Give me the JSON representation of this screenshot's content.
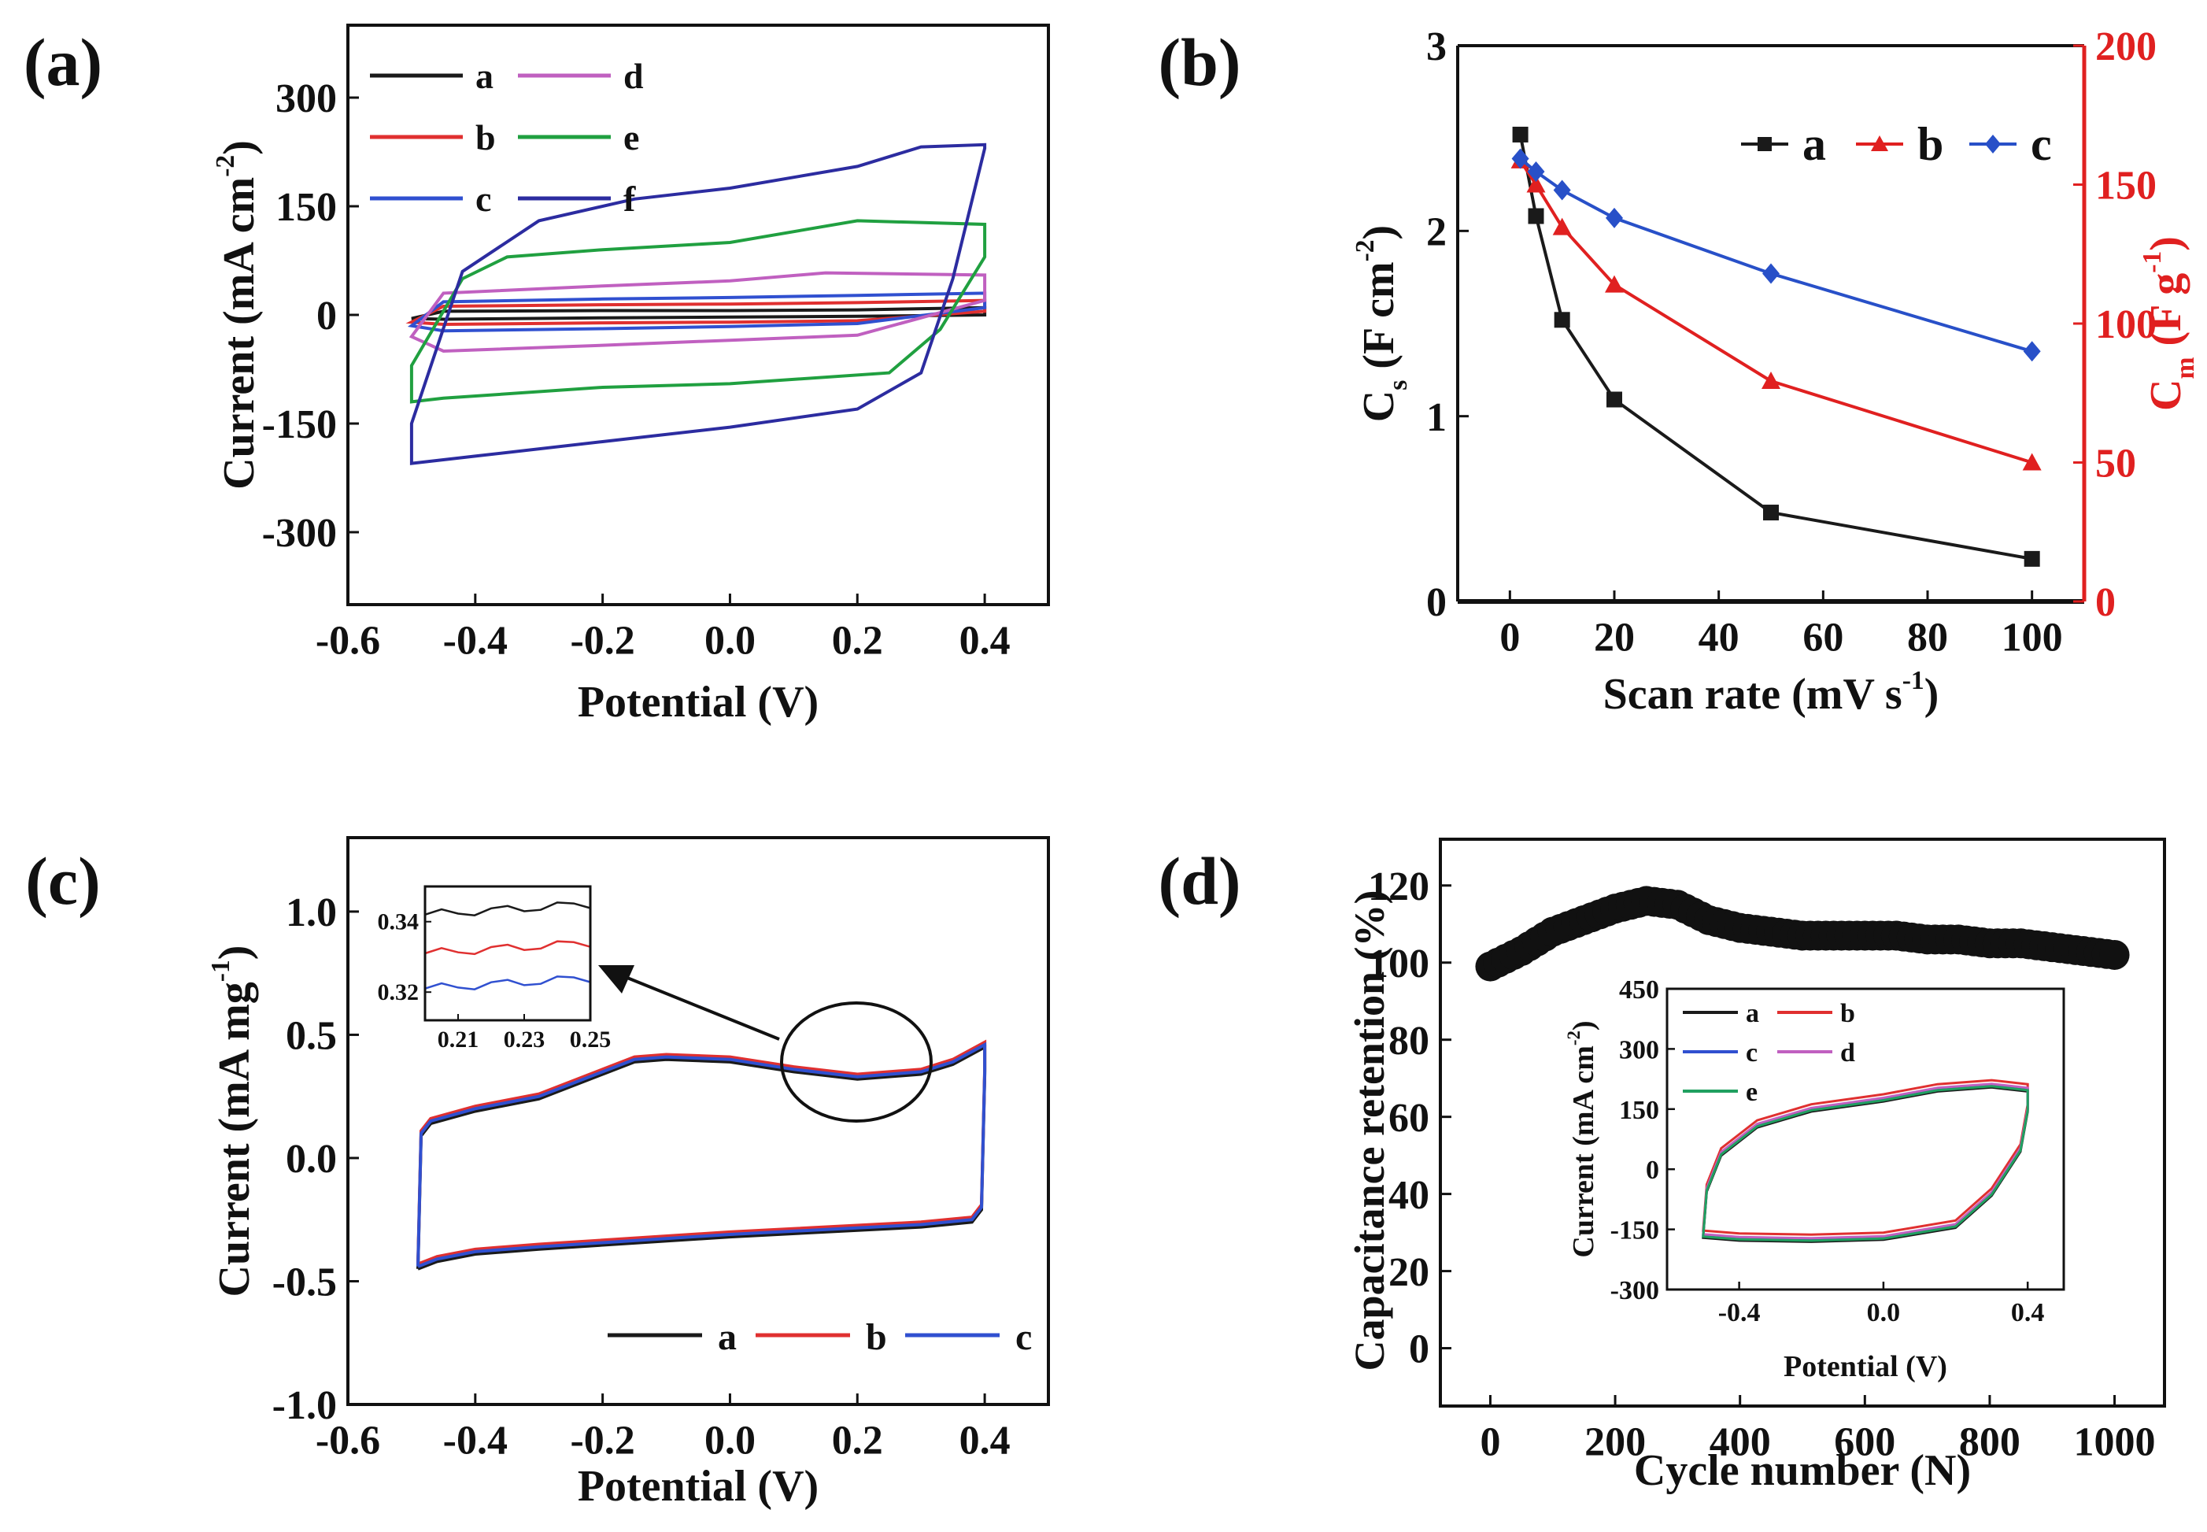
{
  "figure": {
    "panels": [
      "(a)",
      "(b)",
      "(c)",
      "(d)"
    ]
  },
  "chart_data": [
    {
      "id": "a",
      "type": "line",
      "panel_label": "(a)",
      "title": "",
      "xlabel": "Potential (V)",
      "ylabel": "Current (mA cm",
      "ylabel_sup": "-2",
      "ylabel_close": ")",
      "xlim": [
        -0.6,
        0.5
      ],
      "ylim": [
        -400,
        400
      ],
      "xticks": [
        -0.6,
        -0.4,
        -0.2,
        0.0,
        0.2,
        0.4
      ],
      "xtick_labels": [
        "-0.6",
        "-0.4",
        "-0.2",
        "0.0",
        "0.2",
        "0.4"
      ],
      "yticks": [
        -300,
        -150,
        0,
        150,
        300
      ],
      "ytick_labels": [
        "-300",
        "-150",
        "0",
        "150",
        "300"
      ],
      "legend": "top-left",
      "series": [
        {
          "name": "a",
          "color": "#1a1a1a",
          "upper": [
            [
              -0.5,
              -5
            ],
            [
              -0.45,
              5
            ],
            [
              -0.2,
              6
            ],
            [
              0.0,
              6
            ],
            [
              0.2,
              7
            ],
            [
              0.4,
              10
            ]
          ],
          "lower": [
            [
              0.4,
              0
            ],
            [
              0.2,
              -2
            ],
            [
              0.0,
              -3
            ],
            [
              -0.2,
              -4
            ],
            [
              -0.45,
              -6
            ],
            [
              -0.5,
              -5
            ]
          ]
        },
        {
          "name": "b",
          "color": "#e03030",
          "upper": [
            [
              -0.5,
              -10
            ],
            [
              -0.45,
              12
            ],
            [
              -0.2,
              14
            ],
            [
              0.0,
              15
            ],
            [
              0.2,
              17
            ],
            [
              0.4,
              20
            ]
          ],
          "lower": [
            [
              0.4,
              5
            ],
            [
              0.2,
              -8
            ],
            [
              0.0,
              -10
            ],
            [
              -0.2,
              -11
            ],
            [
              -0.45,
              -13
            ],
            [
              -0.5,
              -10
            ]
          ]
        },
        {
          "name": "c",
          "color": "#3050d0",
          "upper": [
            [
              -0.5,
              -15
            ],
            [
              -0.45,
              18
            ],
            [
              -0.2,
              22
            ],
            [
              0.0,
              24
            ],
            [
              0.2,
              27
            ],
            [
              0.4,
              30
            ]
          ],
          "lower": [
            [
              0.4,
              10
            ],
            [
              0.2,
              -12
            ],
            [
              0.0,
              -16
            ],
            [
              -0.2,
              -19
            ],
            [
              -0.45,
              -22
            ],
            [
              -0.5,
              -15
            ]
          ]
        },
        {
          "name": "d",
          "color": "#c060c0",
          "upper": [
            [
              -0.5,
              -30
            ],
            [
              -0.45,
              30
            ],
            [
              -0.2,
              40
            ],
            [
              0.0,
              47
            ],
            [
              0.15,
              58
            ],
            [
              0.4,
              55
            ]
          ],
          "lower": [
            [
              0.4,
              20
            ],
            [
              0.2,
              -28
            ],
            [
              0.0,
              -35
            ],
            [
              -0.2,
              -42
            ],
            [
              -0.45,
              -50
            ],
            [
              -0.5,
              -30
            ]
          ]
        },
        {
          "name": "e",
          "color": "#20a040",
          "upper": [
            [
              -0.5,
              -70
            ],
            [
              -0.42,
              50
            ],
            [
              -0.35,
              80
            ],
            [
              -0.2,
              90
            ],
            [
              0.0,
              100
            ],
            [
              0.2,
              130
            ],
            [
              0.4,
              125
            ]
          ],
          "lower": [
            [
              0.4,
              80
            ],
            [
              0.33,
              -20
            ],
            [
              0.25,
              -80
            ],
            [
              0.0,
              -95
            ],
            [
              -0.2,
              -100
            ],
            [
              -0.45,
              -115
            ],
            [
              -0.5,
              -120
            ]
          ]
        },
        {
          "name": "f",
          "color": "#2c2ca0",
          "upper": [
            [
              -0.5,
              -150
            ],
            [
              -0.42,
              60
            ],
            [
              -0.3,
              130
            ],
            [
              -0.15,
              160
            ],
            [
              0.0,
              175
            ],
            [
              0.2,
              205
            ],
            [
              0.3,
              232
            ],
            [
              0.4,
              235
            ]
          ],
          "lower": [
            [
              0.4,
              230
            ],
            [
              0.35,
              50
            ],
            [
              0.3,
              -80
            ],
            [
              0.2,
              -130
            ],
            [
              0.0,
              -155
            ],
            [
              -0.2,
              -175
            ],
            [
              -0.4,
              -195
            ],
            [
              -0.5,
              -205
            ]
          ]
        }
      ]
    },
    {
      "id": "b",
      "type": "line",
      "panel_label": "(b)",
      "title": "",
      "xlabel": "Scan rate (mV s",
      "xlabel_sup": "-1",
      "xlabel_close": ")",
      "ylabel_main": "C",
      "ylabel_sub": "s",
      "ylabel_rest": " (F cm",
      "ylabel_sup": "-2",
      "ylabel_close": ")",
      "y2label_main": "C",
      "y2label_sub": "m",
      "y2label_rest": " (F g",
      "y2label_sup": "-1",
      "y2label_close": ")",
      "y2_color": "#e02020",
      "x": [
        2,
        5,
        10,
        20,
        50,
        100
      ],
      "xlim": [
        -10,
        110
      ],
      "ylim": [
        0,
        3
      ],
      "y2lim": [
        0,
        200
      ],
      "xticks": [
        0,
        20,
        40,
        60,
        80,
        100
      ],
      "xtick_labels": [
        "0",
        "20",
        "40",
        "60",
        "80",
        "100"
      ],
      "yticks": [
        0,
        1,
        2,
        3
      ],
      "ytick_labels": [
        "0",
        "1",
        "2",
        "3"
      ],
      "y2ticks": [
        0,
        50,
        100,
        150,
        200
      ],
      "y2tick_labels": [
        "0",
        "50",
        "100",
        "150",
        "200"
      ],
      "legend": "top-right",
      "series": [
        {
          "name": "a",
          "color": "#1a1a1a",
          "marker": "square",
          "axis": "left",
          "values": [
            2.52,
            2.08,
            1.52,
            1.09,
            0.48,
            0.23
          ]
        },
        {
          "name": "b",
          "color": "#e02020",
          "marker": "triangle",
          "axis": "left",
          "values": [
            2.38,
            2.25,
            2.02,
            1.71,
            1.19,
            0.75
          ]
        },
        {
          "name": "c",
          "color": "#2850c8",
          "marker": "diamond",
          "axis": "left",
          "values": [
            2.39,
            2.32,
            2.22,
            2.07,
            1.77,
            1.35
          ]
        }
      ]
    },
    {
      "id": "c",
      "type": "line",
      "panel_label": "(c)",
      "title": "",
      "xlabel": "Potential (V)",
      "ylabel": "Current (mA mg",
      "ylabel_sup": "-1",
      "ylabel_close": ")",
      "xlim": [
        -0.6,
        0.5
      ],
      "ylim": [
        -1.0,
        1.3
      ],
      "xticks": [
        -0.6,
        -0.4,
        -0.2,
        0.0,
        0.2,
        0.4
      ],
      "xtick_labels": [
        "-0.6",
        "-0.4",
        "-0.2",
        "0.0",
        "0.2",
        "0.4"
      ],
      "yticks": [
        -1.0,
        -0.5,
        0.0,
        0.5,
        1.0
      ],
      "ytick_labels": [
        "-1.0",
        "-0.5",
        "0.0",
        "0.5",
        "1.0"
      ],
      "legend": "bottom-right",
      "series": [
        {
          "name": "a",
          "color": "#1a1a1a",
          "dy": -0.01
        },
        {
          "name": "b",
          "color": "#e03030",
          "dy": 0.01
        },
        {
          "name": "c",
          "color": "#3050d0",
          "dy": 0.0
        }
      ],
      "cv_curve": [
        [
          -0.49,
          -0.44
        ],
        [
          -0.485,
          0.1
        ],
        [
          -0.47,
          0.15
        ],
        [
          -0.4,
          0.2
        ],
        [
          -0.3,
          0.25
        ],
        [
          -0.2,
          0.35
        ],
        [
          -0.15,
          0.4
        ],
        [
          -0.1,
          0.41
        ],
        [
          0.0,
          0.4
        ],
        [
          0.1,
          0.36
        ],
        [
          0.2,
          0.33
        ],
        [
          0.3,
          0.35
        ],
        [
          0.35,
          0.39
        ],
        [
          0.4,
          0.46
        ],
        [
          0.4,
          0.35
        ],
        [
          0.395,
          -0.2
        ],
        [
          0.38,
          -0.25
        ],
        [
          0.3,
          -0.27
        ],
        [
          0.0,
          -0.31
        ],
        [
          -0.3,
          -0.36
        ],
        [
          -0.4,
          -0.38
        ],
        [
          -0.46,
          -0.41
        ],
        [
          -0.49,
          -0.44
        ]
      ],
      "inset": {
        "xlim": [
          0.2,
          0.25
        ],
        "ylim": [
          0.312,
          0.35
        ],
        "xticks": [
          0.21,
          0.23,
          0.25
        ],
        "xtick_labels": [
          "0.21",
          "0.23",
          "0.25"
        ],
        "yticks": [
          0.32,
          0.34
        ],
        "ytick_labels": [
          "0.32",
          "0.34"
        ],
        "series": [
          {
            "name": "a",
            "color": "#1a1a1a",
            "level": 0.342
          },
          {
            "name": "b",
            "color": "#e03030",
            "level": 0.331
          },
          {
            "name": "c",
            "color": "#3050d0",
            "level": 0.321
          }
        ]
      }
    },
    {
      "id": "d",
      "type": "scatter",
      "panel_label": "(d)",
      "title": "",
      "xlabel": "Cycle number (N)",
      "ylabel": "Capacitance retention (%)",
      "xlim": [
        -80,
        1080
      ],
      "ylim": [
        -15,
        132
      ],
      "xticks": [
        0,
        200,
        400,
        600,
        800,
        1000
      ],
      "xtick_labels": [
        "0",
        "200",
        "400",
        "600",
        "800",
        "1000"
      ],
      "yticks": [
        0,
        20,
        40,
        60,
        80,
        100,
        120
      ],
      "ytick_labels": [
        "0",
        "20",
        "40",
        "60",
        "80",
        "100",
        "120"
      ],
      "retention": [
        [
          0,
          99
        ],
        [
          50,
          103
        ],
        [
          100,
          108
        ],
        [
          150,
          111
        ],
        [
          200,
          114
        ],
        [
          250,
          116
        ],
        [
          300,
          115
        ],
        [
          350,
          111
        ],
        [
          400,
          109
        ],
        [
          450,
          108
        ],
        [
          500,
          107
        ],
        [
          550,
          107
        ],
        [
          600,
          107
        ],
        [
          650,
          107
        ],
        [
          700,
          106
        ],
        [
          750,
          106
        ],
        [
          800,
          105
        ],
        [
          850,
          105
        ],
        [
          900,
          104
        ],
        [
          950,
          103
        ],
        [
          1000,
          102
        ]
      ],
      "inset": {
        "xlabel": "Potential (V)",
        "ylabel": "Current (mA cm",
        "ylabel_sup": "-2",
        "ylabel_close": ")",
        "xlim": [
          -0.6,
          0.5
        ],
        "ylim": [
          -300,
          450
        ],
        "xticks": [
          -0.4,
          0.0,
          0.4
        ],
        "xtick_labels": [
          "-0.4",
          "0.0",
          "0.4"
        ],
        "yticks": [
          -300,
          -150,
          0,
          150,
          300,
          450
        ],
        "ytick_labels": [
          "-300",
          "-150",
          "0",
          "150",
          "300",
          "450"
        ],
        "legend": "top-left",
        "cv_curve": [
          [
            -0.5,
            -165
          ],
          [
            -0.49,
            -50
          ],
          [
            -0.45,
            40
          ],
          [
            -0.35,
            110
          ],
          [
            -0.2,
            150
          ],
          [
            0.0,
            175
          ],
          [
            0.15,
            200
          ],
          [
            0.3,
            210
          ],
          [
            0.4,
            200
          ],
          [
            0.4,
            150
          ],
          [
            0.38,
            50
          ],
          [
            0.3,
            -60
          ],
          [
            0.2,
            -140
          ],
          [
            0.0,
            -170
          ],
          [
            -0.2,
            -175
          ],
          [
            -0.4,
            -172
          ],
          [
            -0.5,
            -165
          ]
        ],
        "series": [
          {
            "name": "a",
            "color": "#1a1a1a",
            "dy": -6
          },
          {
            "name": "b",
            "color": "#e03030",
            "dy": 12
          },
          {
            "name": "c",
            "color": "#3050d0",
            "dy": 0
          },
          {
            "name": "d",
            "color": "#c060c0",
            "dy": 3
          },
          {
            "name": "e",
            "color": "#20a060",
            "dy": -3
          }
        ]
      }
    }
  ]
}
